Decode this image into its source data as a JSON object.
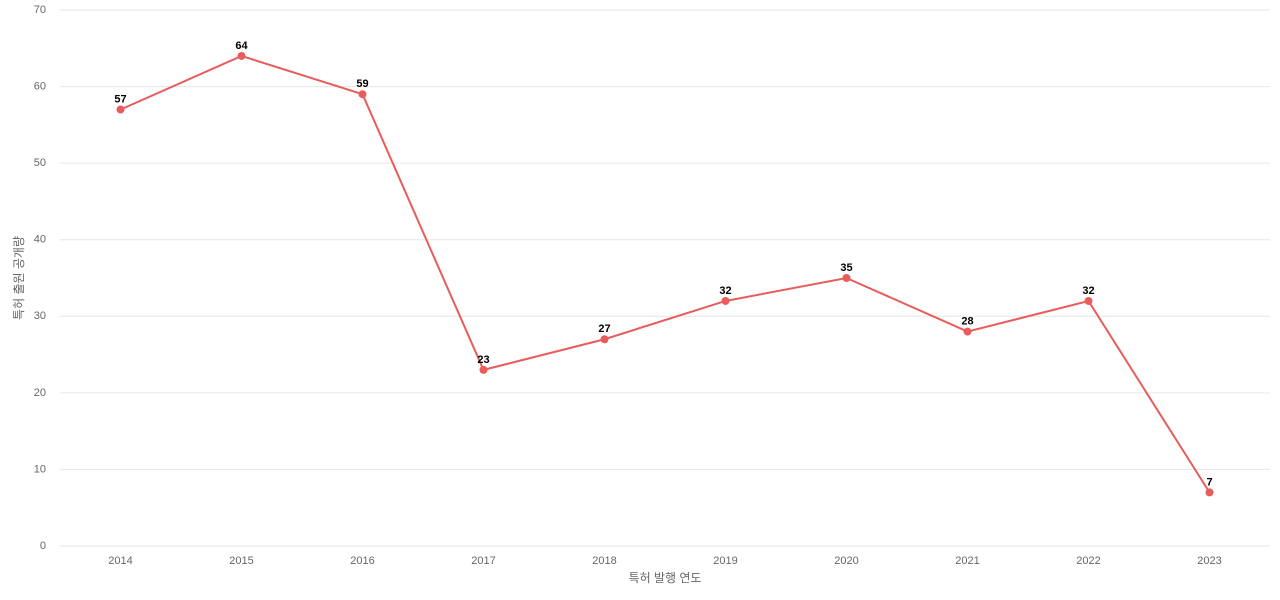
{
  "chart_data": {
    "type": "line",
    "x_label": "특허 발행 연도",
    "y_label": "특허 출원 공개량",
    "categories": [
      "2014",
      "2015",
      "2016",
      "2017",
      "2018",
      "2019",
      "2020",
      "2021",
      "2022",
      "2023"
    ],
    "values": [
      57,
      64,
      59,
      23,
      27,
      32,
      35,
      28,
      32,
      7
    ],
    "color": "#e85c5c",
    "ylim": [
      0,
      70
    ],
    "yticks": [
      0,
      10,
      20,
      30,
      40,
      50,
      60,
      70
    ],
    "grid": true
  }
}
